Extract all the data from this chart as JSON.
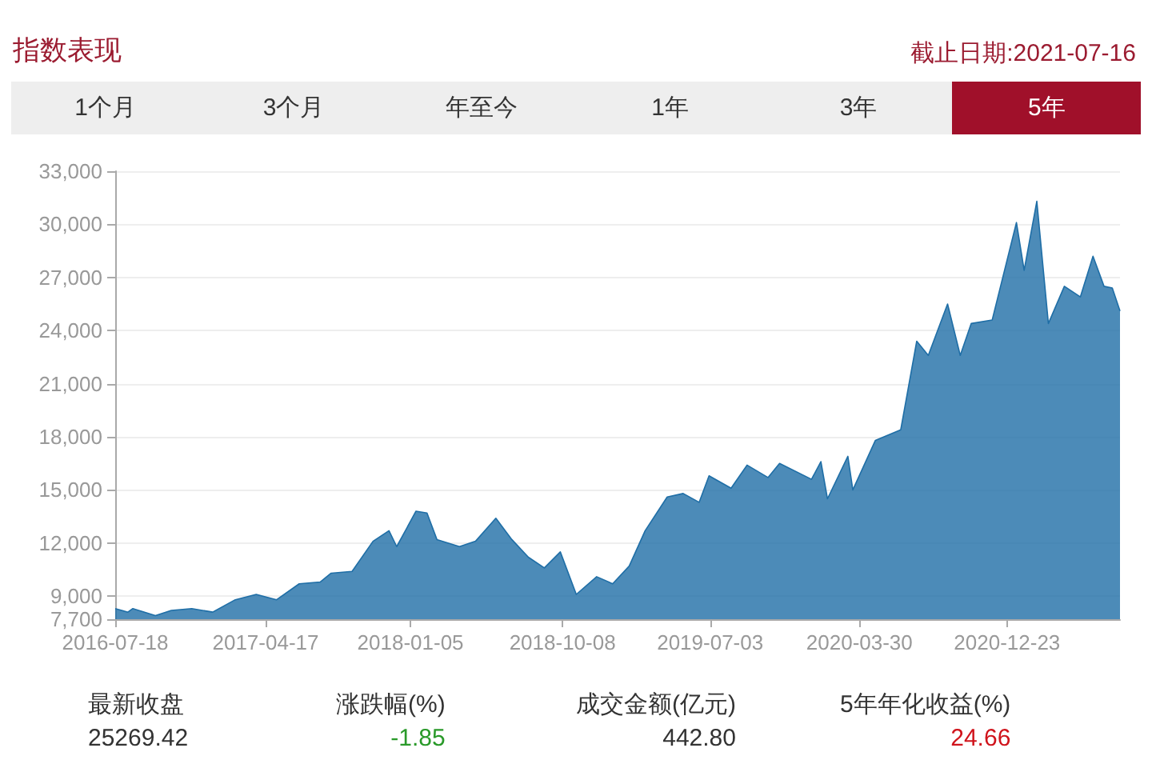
{
  "chart_data": {
    "type": "area",
    "title": "指数表现",
    "annotations": [
      "截止日期:2021-07-16",
      "1个月",
      "3个月",
      "年至今",
      "1年",
      "3年",
      "5年",
      "最新收盘",
      "25269.42",
      "涨跌幅(%)",
      "-1.85",
      "成交金额(亿元)",
      "442.80",
      "5年年化收益(%)",
      "24.66"
    ],
    "x": [
      "2016-07-18",
      "2016-08-10",
      "2016-08-19",
      "2016-09-29",
      "2016-10-28",
      "2016-12-04",
      "2017-01-11",
      "2017-02-21",
      "2017-03-31",
      "2017-05-07",
      "2017-06-17",
      "2017-07-25",
      "2017-08-14",
      "2017-09-21",
      "2017-10-29",
      "2017-11-27",
      "2017-12-11",
      "2018-01-15",
      "2018-02-04",
      "2018-02-22",
      "2018-04-04",
      "2018-05-03",
      "2018-06-09",
      "2018-07-08",
      "2018-08-07",
      "2018-09-05",
      "2018-10-04",
      "2018-11-02",
      "2018-12-09",
      "2019-01-07",
      "2019-02-06",
      "2019-03-07",
      "2019-04-16",
      "2019-05-15",
      "2019-06-13",
      "2019-07-01",
      "2019-08-10",
      "2019-09-08",
      "2019-10-16",
      "2019-11-06",
      "2020-01-03",
      "2020-01-20",
      "2020-02-01",
      "2020-03-09",
      "2020-03-18",
      "2020-04-28",
      "2020-06-13",
      "2020-07-12",
      "2020-08-02",
      "2020-09-06",
      "2020-09-29",
      "2020-10-19",
      "2020-11-26",
      "2021-01-09",
      "2021-01-23",
      "2021-02-15",
      "2021-03-08",
      "2021-04-06",
      "2021-05-05",
      "2021-05-28",
      "2021-06-17",
      "2021-07-02",
      "2021-07-16"
    ],
    "series": [
      {
        "color": "#1f6ea6",
        "values": [
          8300,
          8100,
          8300,
          7900,
          8200,
          8300,
          8100,
          8800,
          9100,
          8800,
          9700,
          9800,
          10300,
          10400,
          12100,
          12700,
          11800,
          13800,
          13700,
          12200,
          11800,
          12100,
          13400,
          12200,
          11200,
          10600,
          11500,
          9100,
          10100,
          9700,
          10700,
          12700,
          14600,
          14800,
          14300,
          15800,
          15100,
          16400,
          15700,
          16500,
          15600,
          16600,
          14500,
          16900,
          15000,
          17800,
          18400,
          23400,
          22600,
          25500,
          22600,
          24400,
          24600,
          30100,
          27400,
          31300,
          24400,
          26500,
          25900,
          28200,
          26500,
          26400,
          25100
        ]
      }
    ],
    "xlim": [
      "2016-07-18",
      "2021-07-16"
    ],
    "xticks": [
      "2016-07-18",
      "2017-04-17",
      "2018-01-05",
      "2018-10-08",
      "2019-07-03",
      "2020-03-30",
      "2020-12-23"
    ],
    "ylim": [
      7700,
      33000
    ],
    "yticks": [
      {
        "value": 7700,
        "label": "7,700"
      },
      {
        "value": 9000,
        "label": "9,000"
      },
      {
        "value": 12000,
        "label": "12,000"
      },
      {
        "value": 15000,
        "label": "15,000"
      },
      {
        "value": 18000,
        "label": "18,000"
      },
      {
        "value": 21000,
        "label": "21,000"
      },
      {
        "value": 24000,
        "label": "24,000"
      },
      {
        "value": 27000,
        "label": "27,000"
      },
      {
        "value": 30000,
        "label": "30,000"
      },
      {
        "value": 33000,
        "label": "33,000"
      }
    ],
    "grid": "y",
    "marker": "none",
    "line_style": "solid"
  }
}
